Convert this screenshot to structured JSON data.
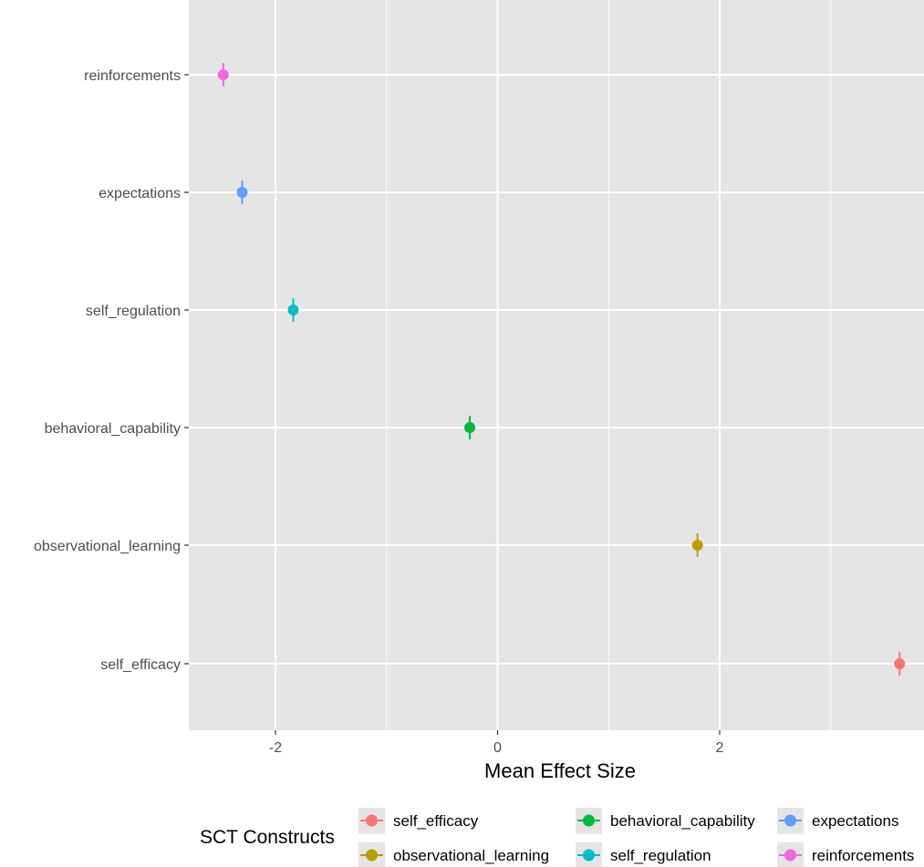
{
  "chart_data": {
    "type": "scatter",
    "title": "",
    "xlabel": "Mean Effect Size",
    "ylabel": "",
    "xlim": [
      -2.8,
      3.85
    ],
    "x_ticks": [
      -2,
      0,
      2
    ],
    "x_minor_ticks": [
      -3,
      -1,
      1,
      3
    ],
    "grid": true,
    "categories": [
      "reinforcements",
      "expectations",
      "self_regulation",
      "behavioral_capability",
      "observational_learning",
      "self_efficacy"
    ],
    "points": [
      {
        "category": "reinforcements",
        "x": -2.47,
        "lower": -2.47,
        "upper": -2.47,
        "error_span_y": 0.2
      },
      {
        "category": "expectations",
        "x": -2.3,
        "lower": -2.3,
        "upper": -2.3,
        "error_span_y": 0.2
      },
      {
        "category": "self_regulation",
        "x": -1.84,
        "lower": -1.84,
        "upper": -1.84,
        "error_span_y": 0.2
      },
      {
        "category": "behavioral_capability",
        "x": -0.25,
        "lower": -0.25,
        "upper": -0.25,
        "error_span_y": 0.2
      },
      {
        "category": "observational_learning",
        "x": 1.8,
        "lower": 1.8,
        "upper": 1.8,
        "error_span_y": 0.2
      },
      {
        "category": "self_efficacy",
        "x": 3.62,
        "lower": 3.62,
        "upper": 3.62,
        "error_span_y": 0.2
      }
    ],
    "legend": {
      "title": "SCT Constructs",
      "position": "bottom",
      "entries": [
        {
          "label": "self_efficacy",
          "color": "#F8766D"
        },
        {
          "label": "observational_learning",
          "color": "#B79F00"
        },
        {
          "label": "behavioral_capability",
          "color": "#00BA38"
        },
        {
          "label": "self_regulation",
          "color": "#00BFC4"
        },
        {
          "label": "expectations",
          "color": "#619CFF"
        },
        {
          "label": "reinforcements",
          "color": "#F564E3"
        }
      ]
    },
    "colors": {
      "panel_background": "#E5E5E5",
      "grid_line": "#FFFFFF",
      "tick_color": "#333333",
      "legend_key_background": "#E5E5E5"
    }
  }
}
